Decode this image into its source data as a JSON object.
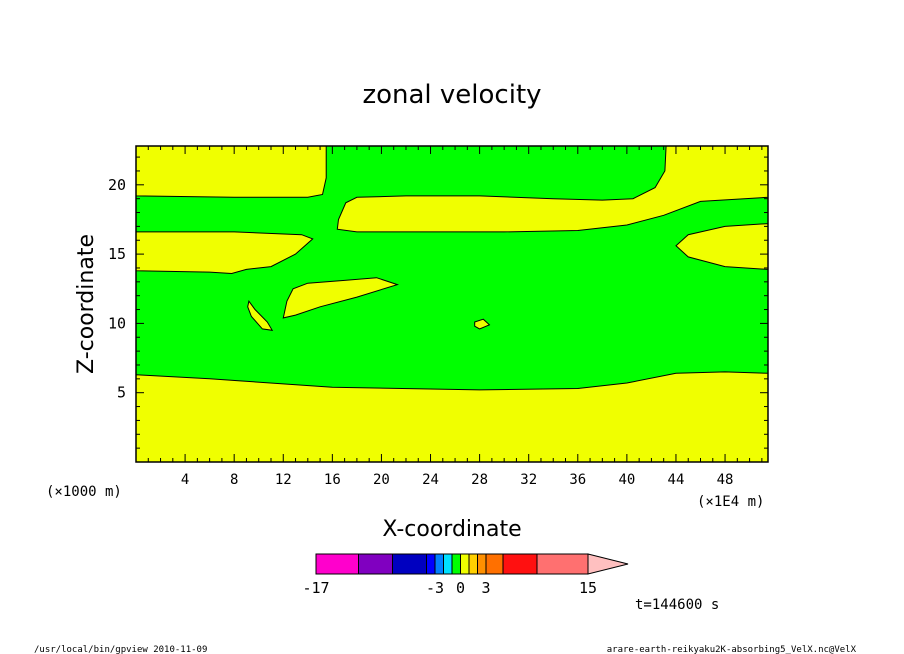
{
  "chart_data": {
    "type": "contour",
    "title": "zonal velocity",
    "xlabel": "X-coordinate",
    "ylabel": "Z-coordinate",
    "x_unit_left": "(×1000 m)",
    "x_unit_right": "(×1E4 m)",
    "xlim": [
      0,
      51.5
    ],
    "ylim": [
      0,
      22.8
    ],
    "xticks": [
      "4",
      "8",
      "12",
      "16",
      "20",
      "24",
      "28",
      "32",
      "36",
      "40",
      "44",
      "48"
    ],
    "yticks": [
      "5",
      "10",
      "15",
      "20"
    ],
    "grid": false,
    "colors": {
      "green": "#00ff00",
      "yellow": "#f0ff00"
    },
    "background_field": "green",
    "regions": [
      {
        "color": "yellow",
        "points": [
          [
            0,
            6.3
          ],
          [
            6,
            6
          ],
          [
            16,
            5.4
          ],
          [
            28,
            5.2
          ],
          [
            36,
            5.3
          ],
          [
            40,
            5.7
          ],
          [
            44,
            6.4
          ],
          [
            48,
            6.5
          ],
          [
            51.5,
            6.4
          ],
          [
            51.5,
            0
          ],
          [
            0,
            0
          ]
        ]
      },
      {
        "color": "yellow",
        "points": [
          [
            0,
            19.2
          ],
          [
            8,
            19.1
          ],
          [
            14,
            19.1
          ],
          [
            15.2,
            19.3
          ],
          [
            15.5,
            20.5
          ],
          [
            15.5,
            22.8
          ],
          [
            0,
            22.8
          ]
        ]
      },
      {
        "color": "yellow",
        "points": [
          [
            43.2,
            22.8
          ],
          [
            43.1,
            21
          ],
          [
            42.3,
            19.8
          ],
          [
            40.5,
            19
          ],
          [
            38,
            18.9
          ],
          [
            34,
            19
          ],
          [
            28,
            19.2
          ],
          [
            22,
            19.2
          ],
          [
            18,
            19.1
          ],
          [
            17.1,
            18.7
          ],
          [
            16.5,
            17.5
          ],
          [
            16.4,
            16.8
          ],
          [
            18,
            16.6
          ],
          [
            24,
            16.6
          ],
          [
            30,
            16.6
          ],
          [
            36,
            16.7
          ],
          [
            40,
            17.1
          ],
          [
            43,
            17.8
          ],
          [
            46,
            18.8
          ],
          [
            51.5,
            19.1
          ],
          [
            51.5,
            22.8
          ]
        ]
      },
      {
        "color": "yellow",
        "points": [
          [
            0,
            16.6
          ],
          [
            8,
            16.6
          ],
          [
            13.5,
            16.4
          ],
          [
            14.4,
            16.1
          ],
          [
            13,
            15
          ],
          [
            11,
            14.1
          ],
          [
            9,
            13.9
          ],
          [
            7.8,
            13.6
          ],
          [
            6,
            13.7
          ],
          [
            0,
            13.8
          ]
        ]
      },
      {
        "color": "yellow",
        "points": [
          [
            12,
            10.4
          ],
          [
            12.3,
            11.6
          ],
          [
            12.8,
            12.5
          ],
          [
            14,
            12.9
          ],
          [
            17,
            13.1
          ],
          [
            19.6,
            13.3
          ],
          [
            21.3,
            12.8
          ],
          [
            18,
            11.9
          ],
          [
            15,
            11.2
          ],
          [
            13,
            10.6
          ]
        ]
      },
      {
        "color": "yellow",
        "points": [
          [
            9.2,
            11.6
          ],
          [
            9.7,
            11
          ],
          [
            10.7,
            10.1
          ],
          [
            11.1,
            9.5
          ],
          [
            10.3,
            9.6
          ],
          [
            9.4,
            10.5
          ],
          [
            9.1,
            11.2
          ]
        ]
      },
      {
        "color": "yellow",
        "points": [
          [
            27.6,
            10.1
          ],
          [
            28.3,
            10.3
          ],
          [
            28.8,
            9.9
          ],
          [
            28,
            9.6
          ],
          [
            27.6,
            9.8
          ]
        ]
      },
      {
        "color": "yellow",
        "points": [
          [
            51.5,
            17.2
          ],
          [
            48,
            17
          ],
          [
            45,
            16.4
          ],
          [
            44,
            15.6
          ],
          [
            45,
            14.8
          ],
          [
            48,
            14.1
          ],
          [
            51.5,
            13.9
          ]
        ]
      }
    ],
    "colorbar": {
      "labels": [
        "-17",
        "-3",
        "0",
        "3",
        "15"
      ],
      "colors": [
        "#ff00cc",
        "#8000c0",
        "#0000c0",
        "#0000ff",
        "#0080ff",
        "#00e0ff",
        "#00ff00",
        "#f0ff00",
        "#ffd000",
        "#ff9000",
        "#ff7000",
        "#ff1010",
        "#ff7070",
        "#ffc0c0"
      ]
    },
    "time_label": "t=144600 s"
  },
  "footer": {
    "left": "/usr/local/bin/gpview  2010-11-09",
    "right": "arare-earth-reikyaku2K-absorbing5_VelX.nc@VelX"
  }
}
